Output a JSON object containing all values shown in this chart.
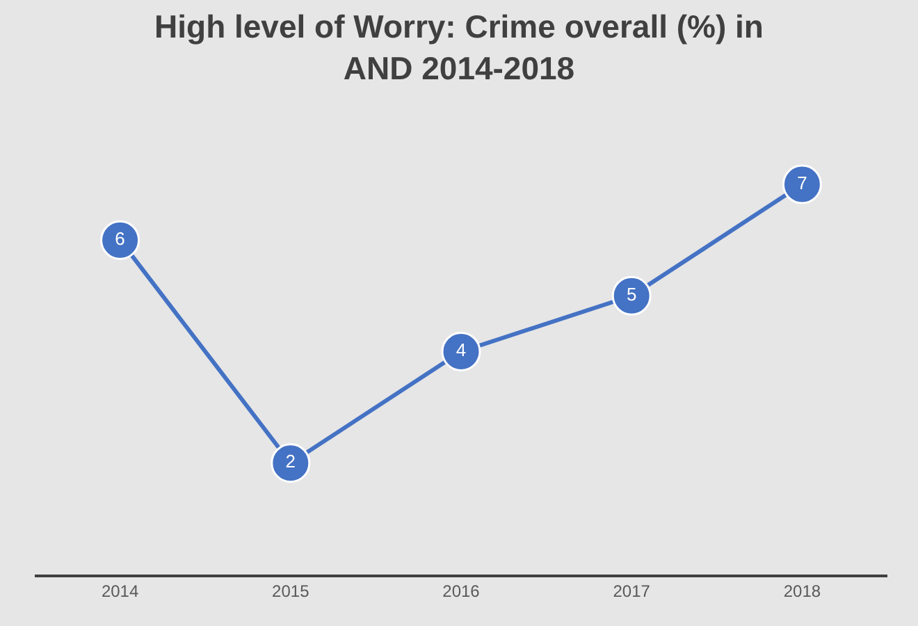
{
  "chart_data": {
    "type": "line",
    "title": "High level of Worry: Crime overall (%) in AND 2014-2018",
    "categories": [
      "2014",
      "2015",
      "2016",
      "2017",
      "2018"
    ],
    "series": [
      {
        "color": "#4472c4",
        "values": [
          6,
          2,
          4,
          5,
          7
        ]
      }
    ],
    "data_labels": true,
    "marker": "circle",
    "line_style": "solid",
    "grid": false,
    "legend": false
  }
}
